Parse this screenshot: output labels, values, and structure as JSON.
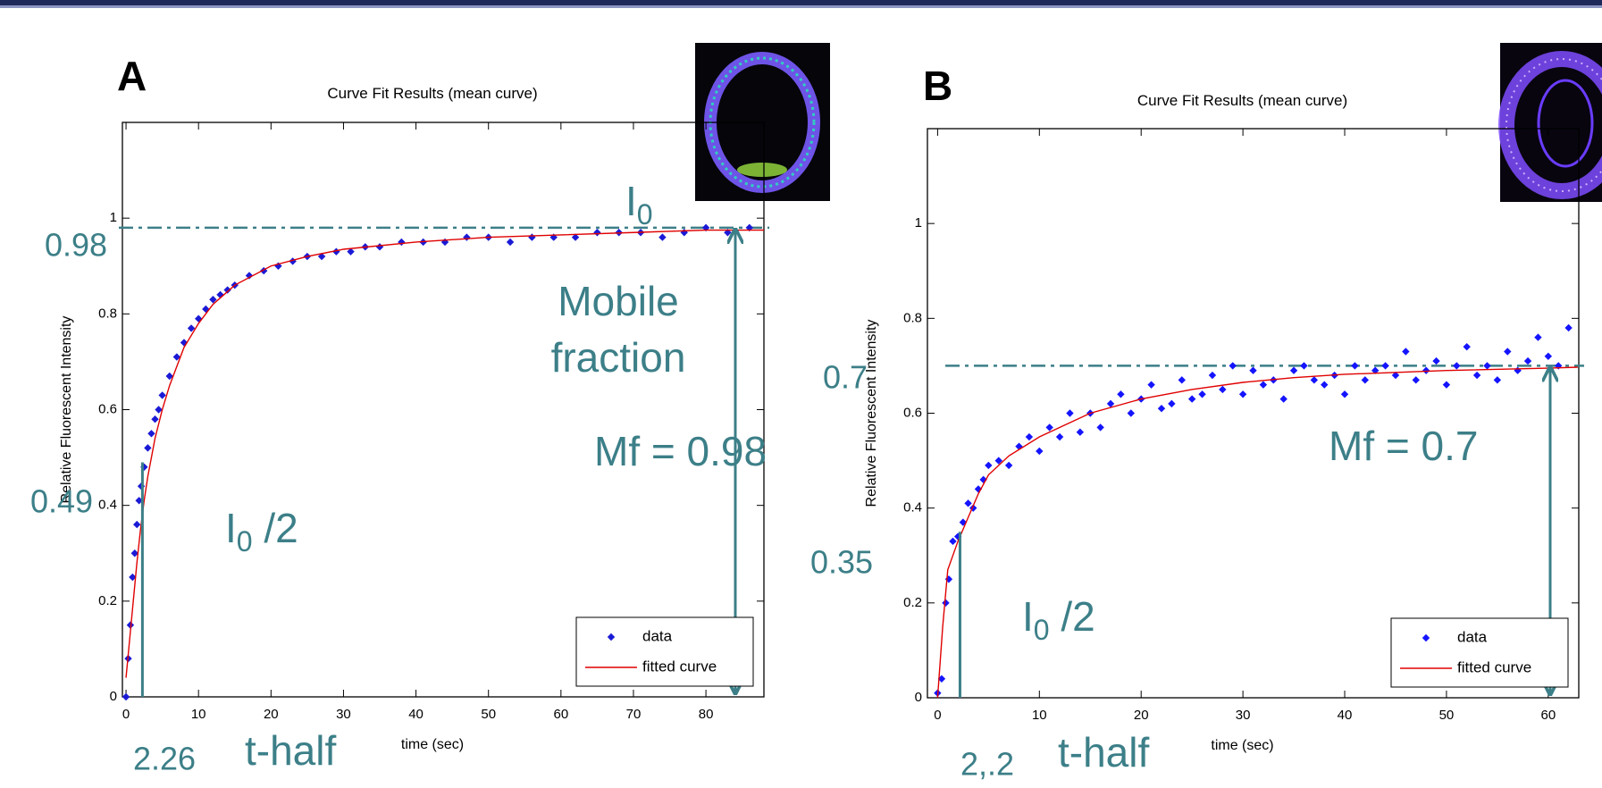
{
  "chart_data": [
    {
      "type": "scatter",
      "panel_label": "A",
      "title": "Curve Fit Results (mean curve)",
      "xlabel": "time (sec)",
      "ylabel": "Relative Fluorescent Intensity",
      "xlim": [
        -0.5,
        88
      ],
      "ylim": [
        0,
        1.2
      ],
      "xticks": [
        0,
        10,
        20,
        30,
        40,
        50,
        60,
        70,
        80
      ],
      "yticks": [
        0,
        0.2,
        0.4,
        0.6,
        0.8,
        1
      ],
      "legend": "lower right",
      "series": [
        {
          "name": "data",
          "color": "#1a1ad6",
          "mode": "markers",
          "x": [
            0,
            0.3,
            0.6,
            0.9,
            1.2,
            1.5,
            1.8,
            2.1,
            2.5,
            3,
            3.5,
            4,
            4.5,
            5,
            6,
            7,
            8,
            9,
            10,
            11,
            12,
            13,
            14,
            15,
            17,
            19,
            21,
            23,
            25,
            27,
            29,
            31,
            33,
            35,
            38,
            41,
            44,
            47,
            50,
            53,
            56,
            59,
            62,
            65,
            68,
            71,
            74,
            77,
            80,
            83,
            86
          ],
          "values": [
            0,
            0.08,
            0.15,
            0.25,
            0.3,
            0.36,
            0.41,
            0.44,
            0.48,
            0.52,
            0.55,
            0.58,
            0.6,
            0.63,
            0.67,
            0.71,
            0.74,
            0.77,
            0.79,
            0.81,
            0.83,
            0.84,
            0.85,
            0.86,
            0.88,
            0.89,
            0.9,
            0.91,
            0.92,
            0.92,
            0.93,
            0.93,
            0.94,
            0.94,
            0.95,
            0.95,
            0.95,
            0.96,
            0.96,
            0.95,
            0.96,
            0.96,
            0.96,
            0.97,
            0.97,
            0.97,
            0.96,
            0.97,
            0.98,
            0.97,
            0.98
          ]
        },
        {
          "name": "fitted curve",
          "color": "#e00000",
          "mode": "line",
          "x": [
            0,
            0.5,
            1,
            1.5,
            2,
            2.5,
            3,
            4,
            5,
            6,
            8,
            10,
            12,
            15,
            20,
            25,
            30,
            40,
            50,
            60,
            70,
            80,
            88
          ],
          "values": [
            0.04,
            0.12,
            0.2,
            0.28,
            0.35,
            0.41,
            0.46,
            0.54,
            0.6,
            0.65,
            0.73,
            0.78,
            0.82,
            0.86,
            0.9,
            0.92,
            0.935,
            0.95,
            0.96,
            0.965,
            0.97,
            0.975,
            0.975
          ]
        }
      ],
      "annotations": {
        "i0": {
          "base": "I",
          "sub": "0"
        },
        "plateau": {
          "value": 0.98,
          "label": "0.98"
        },
        "mobile_fraction": [
          "Mobile",
          "fraction"
        ],
        "mf": "Mf = 0.98",
        "half": {
          "value": 0.49,
          "label": "0.49"
        },
        "i0_half": {
          "base": "I",
          "sub": "0",
          "rest": " /2"
        },
        "t_half": {
          "value": 2.26,
          "label": "2.26"
        },
        "t_half_label": "t-half"
      }
    },
    {
      "type": "scatter",
      "panel_label": "B",
      "title": "Curve Fit Results (mean curve)",
      "xlabel": "time (sec)",
      "ylabel": "Relative Fluorescent Intensity",
      "xlim": [
        -1,
        63
      ],
      "ylim": [
        0,
        1.2
      ],
      "xticks": [
        0,
        10,
        20,
        30,
        40,
        50,
        60
      ],
      "yticks": [
        0,
        0.2,
        0.4,
        0.6,
        0.8,
        1
      ],
      "legend": "lower right",
      "series": [
        {
          "name": "data",
          "color": "#1414ff",
          "mode": "markers",
          "x": [
            0,
            0.4,
            0.8,
            1.1,
            1.5,
            2,
            2.5,
            3,
            3.5,
            4,
            4.5,
            5,
            6,
            7,
            8,
            9,
            10,
            11,
            12,
            13,
            14,
            15,
            16,
            17,
            18,
            19,
            20,
            21,
            22,
            23,
            24,
            25,
            26,
            27,
            28,
            29,
            30,
            31,
            32,
            33,
            34,
            35,
            36,
            37,
            38,
            39,
            40,
            41,
            42,
            43,
            44,
            45,
            46,
            47,
            48,
            49,
            50,
            51,
            52,
            53,
            54,
            55,
            56,
            57,
            58,
            59,
            60,
            61,
            62
          ],
          "values": [
            0.01,
            0.04,
            0.2,
            0.25,
            0.33,
            0.34,
            0.37,
            0.41,
            0.4,
            0.44,
            0.46,
            0.49,
            0.5,
            0.49,
            0.53,
            0.55,
            0.52,
            0.57,
            0.55,
            0.6,
            0.56,
            0.6,
            0.57,
            0.62,
            0.64,
            0.6,
            0.63,
            0.66,
            0.61,
            0.62,
            0.67,
            0.63,
            0.64,
            0.68,
            0.65,
            0.7,
            0.64,
            0.69,
            0.66,
            0.67,
            0.63,
            0.69,
            0.7,
            0.67,
            0.66,
            0.68,
            0.64,
            0.7,
            0.67,
            0.69,
            0.7,
            0.68,
            0.73,
            0.67,
            0.69,
            0.71,
            0.66,
            0.7,
            0.74,
            0.68,
            0.7,
            0.67,
            0.73,
            0.69,
            0.71,
            0.76,
            0.72,
            0.7,
            0.78
          ]
        },
        {
          "name": "fitted curve",
          "color": "#e00000",
          "mode": "line",
          "x": [
            0,
            0.5,
            1,
            2,
            3,
            4,
            5,
            7,
            10,
            15,
            20,
            25,
            30,
            35,
            40,
            50,
            60,
            62.9
          ],
          "values": [
            0,
            0.15,
            0.27,
            0.33,
            0.38,
            0.43,
            0.47,
            0.51,
            0.55,
            0.6,
            0.63,
            0.65,
            0.665,
            0.675,
            0.682,
            0.69,
            0.695,
            0.697
          ]
        }
      ],
      "annotations": {
        "plateau": {
          "value": 0.7,
          "label": "0.7"
        },
        "mf": "Mf = 0.7",
        "half": {
          "value": 0.35,
          "label": "0.35"
        },
        "i0_half": {
          "base": "I",
          "sub": "0",
          "rest": " /2"
        },
        "t_half": {
          "value": 2.2,
          "label": "2,.2"
        },
        "t_half_label": "t-half"
      }
    }
  ]
}
